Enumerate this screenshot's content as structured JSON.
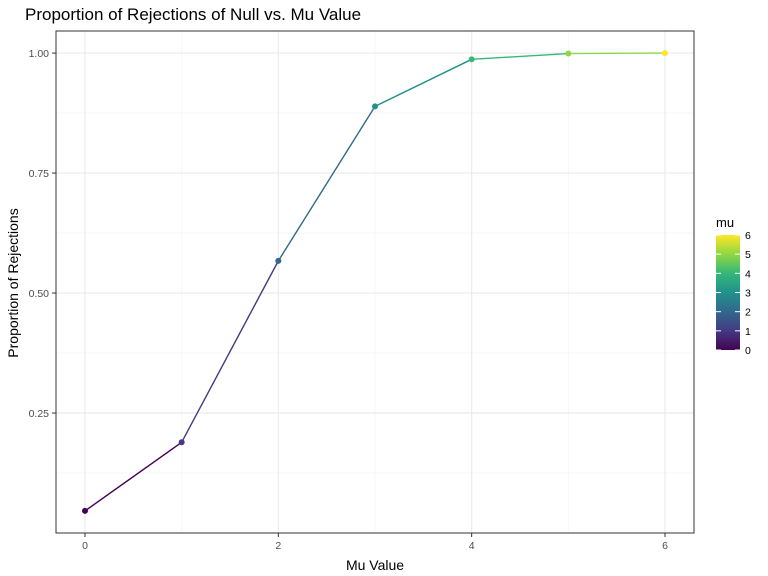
{
  "chart_data": {
    "type": "line",
    "title": "Proportion of Rejections of Null vs. Mu Value",
    "xlabel": "Mu Value",
    "ylabel": "Proportion of Rejections",
    "x": [
      0,
      1,
      2,
      3,
      4,
      5,
      6
    ],
    "y": [
      0.046,
      0.189,
      0.567,
      0.889,
      0.987,
      0.999,
      1.0
    ],
    "xlim": [
      -0.3,
      6.3
    ],
    "ylim": [
      0,
      1.046
    ],
    "x_ticks": [
      0,
      2,
      4,
      6
    ],
    "x_tick_labels": [
      "0",
      "2",
      "4",
      "6"
    ],
    "y_ticks": [
      0.25,
      0.5,
      0.75,
      1.0
    ],
    "y_tick_labels": [
      "0.25",
      "0.50",
      "0.75",
      "1.00"
    ],
    "grid": true,
    "color_scale": "viridis",
    "legend": {
      "title": "mu",
      "placement": "right",
      "values": [
        0,
        1,
        2,
        3,
        4,
        5,
        6
      ],
      "labels": [
        "0",
        "1",
        "2",
        "3",
        "4",
        "5",
        "6"
      ]
    }
  },
  "colors": {
    "viridis": [
      "#440154",
      "#443983",
      "#31688e",
      "#21918c",
      "#35b779",
      "#90d743",
      "#fde725"
    ],
    "panel_border": "#333333",
    "grid_major": "#ebebeb",
    "grid_minor": "#f5f5f5"
  }
}
